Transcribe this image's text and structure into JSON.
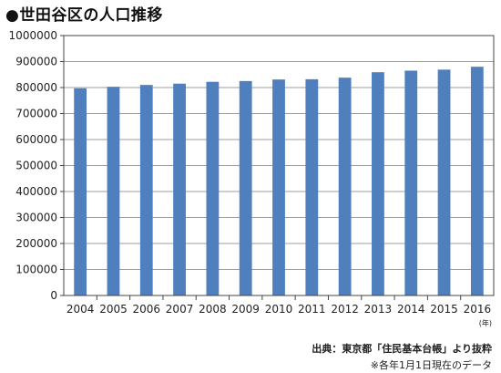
{
  "chart_data": {
    "type": "bar",
    "title": "●世田谷区の人口推移",
    "categories": [
      "2004",
      "2005",
      "2006",
      "2007",
      "2008",
      "2009",
      "2010",
      "2011",
      "2012",
      "2013",
      "2014",
      "2015",
      "2016"
    ],
    "values": [
      797000,
      803000,
      810000,
      815000,
      822000,
      825000,
      831000,
      832000,
      838000,
      859000,
      865000,
      869000,
      880000
    ],
    "ylim": [
      0,
      1000000
    ],
    "yticks": [
      "0",
      "100000",
      "200000",
      "300000",
      "400000",
      "500000",
      "600000",
      "700000",
      "800000",
      "900000",
      "1000000"
    ],
    "xunit": "(年)",
    "grid": true,
    "bar_color": "#4f80bd",
    "grid_color": "#9e9e9e",
    "plot_background": "#ffffff"
  },
  "footnotes": {
    "source": "出典：東京都「住民基本台帳」より抜粋",
    "note": "※各年1月1日現在のデータ"
  }
}
